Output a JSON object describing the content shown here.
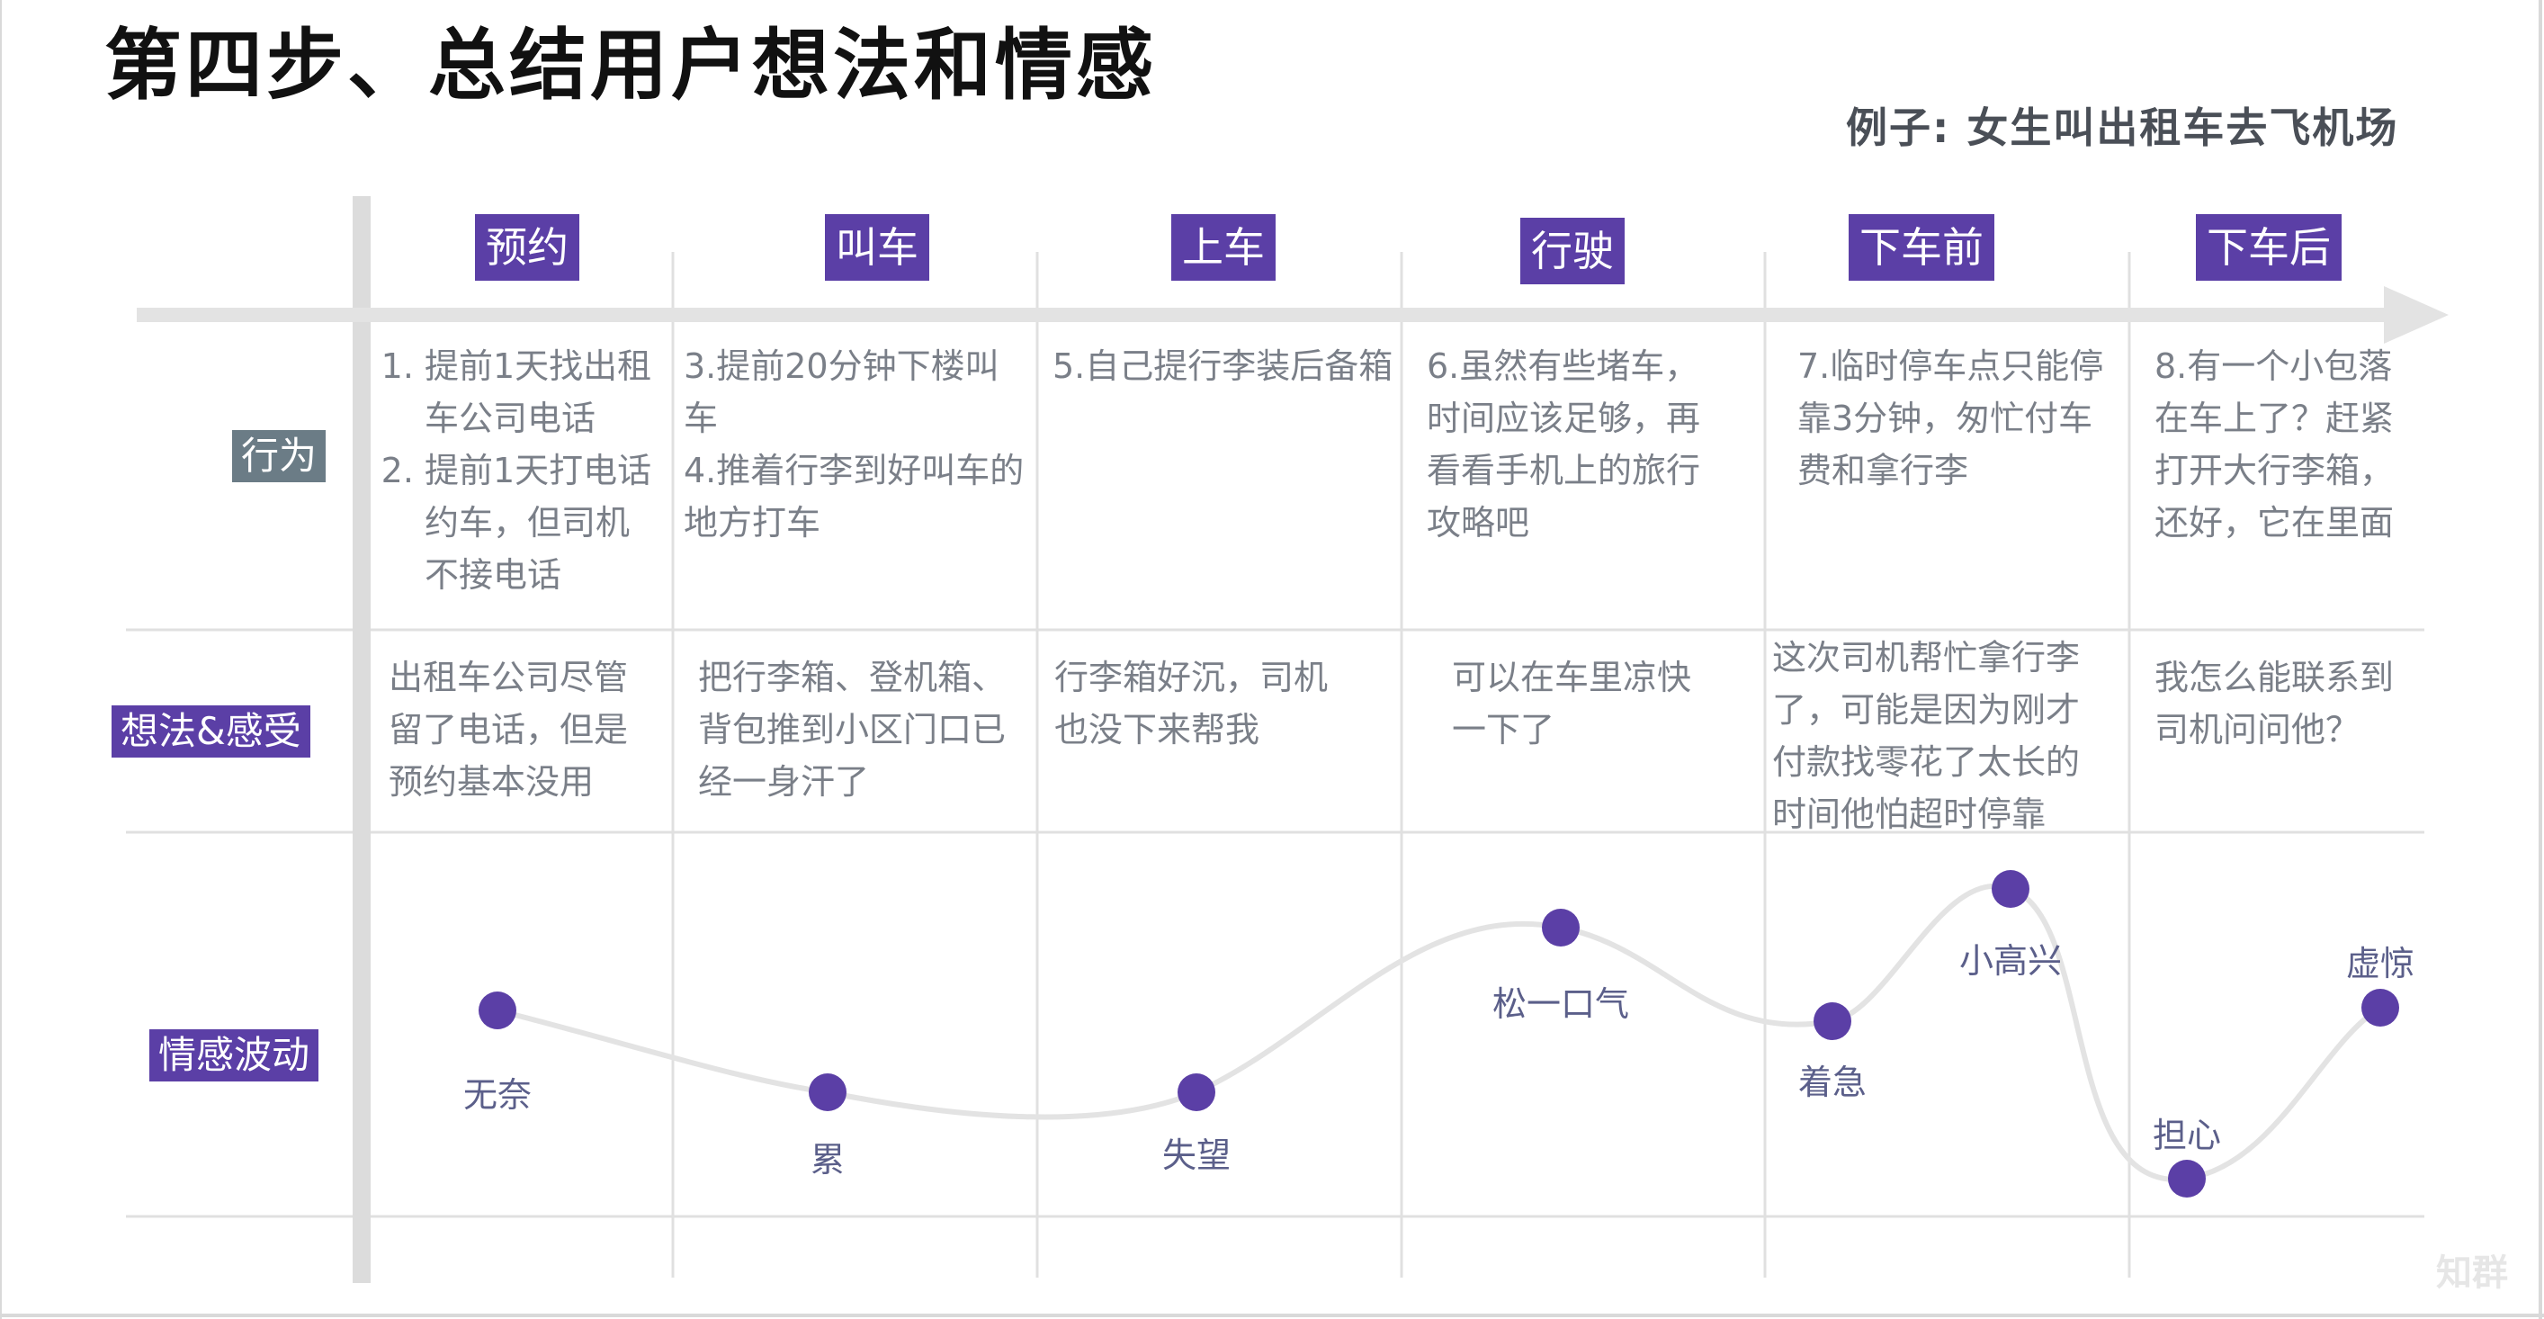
{
  "title": "第四步、总结用户想法和情感",
  "subtitle": "例子: 女生叫出租车去飞机场",
  "stages": [
    "预约",
    "叫车",
    "上车",
    "行驶",
    "下车前",
    "下车后"
  ],
  "row_labels": {
    "behavior": "行为",
    "thoughts": "想法&感受",
    "emotion": "情感波动"
  },
  "behavior": {
    "s1_item1": "提前1天找出租车公司电话",
    "s1_item2": "提前1天打电话约车，但司机不接电话",
    "s2_line1": "3.提前20分钟下楼叫车",
    "s2_line2": "4.推着行李到好叫车的地方打车",
    "s3": "5.自己提行李装后备箱",
    "s4": "6.虽然有些堵车，时间应该足够，再看看手机上的旅行攻略吧",
    "s5": "7.临时停车点只能停靠3分钟，匆忙付车费和拿行李",
    "s6": "8.有一个小包落在车上了？赶紧打开大行李箱，还好，它在里面"
  },
  "thoughts": [
    "出租车公司尽管留了电话，但是预约基本没用",
    "把行李箱、登机箱、背包推到小区门口已经一身汗了",
    "行李箱好沉，司机也没下来帮我",
    "可以在车里凉快一下了",
    "这次司机帮忙拿行李了，可能是因为刚才付款找零花了太长的时间他怕超时停靠",
    "我怎么能联系到司机问问他？"
  ],
  "emotions": [
    {
      "label": "无奈"
    },
    {
      "label": "累"
    },
    {
      "label": "失望"
    },
    {
      "label": "松一口气"
    },
    {
      "label": "着急"
    },
    {
      "label": "小高兴"
    },
    {
      "label": "担心"
    },
    {
      "label": "虚惊"
    }
  ],
  "colors": {
    "accent": "#5b3fa6",
    "behavior_label_bg": "#6b7c86",
    "curve": "#e3e3e3",
    "grid": "#e0e0e0"
  },
  "watermark": "知群"
}
